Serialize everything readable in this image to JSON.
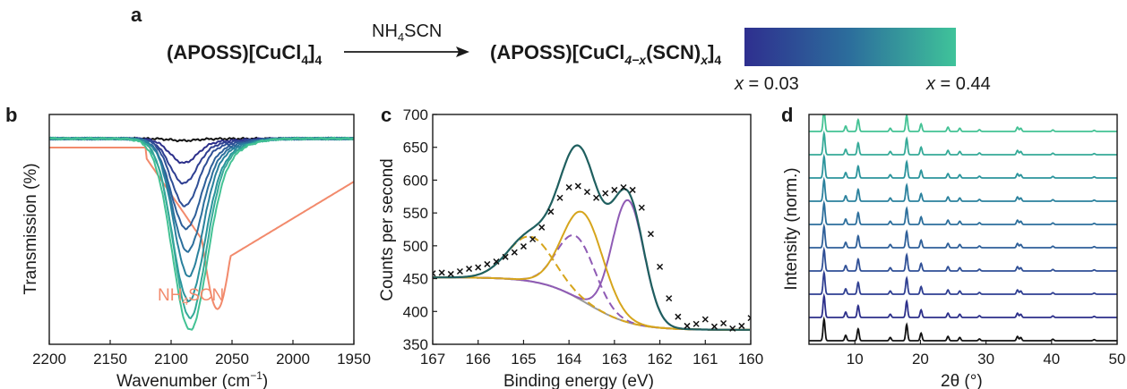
{
  "scheme": {
    "panel_letter": "a",
    "reactant": "(APOSS)[CuCl",
    "reactant_sub1": "4",
    "reactant_close": "]",
    "reactant_sub2": "4",
    "reagent": "NH",
    "reagent_sub": "4",
    "reagent_tail": "SCN",
    "product": "(APOSS)[CuCl",
    "product_sub1": "4−x",
    "product_mid": "(SCN)",
    "product_sub_x": "x",
    "product_close": "]",
    "product_sub2": "4",
    "colorbar": {
      "colors": [
        "#2e2f8f",
        "#2c6e9c",
        "#3fc39a"
      ]
    },
    "x_min_label": "x",
    "x_min_value": " = 0.03",
    "x_max_label": "x",
    "x_max_value": " = 0.44"
  },
  "chart_data": [
    {
      "panel": "b",
      "type": "line",
      "xlabel": "Wavenumber (cm",
      "xlabel_sup": "−1",
      "xlabel_end": ")",
      "ylabel": "Transmission (%)",
      "xlim": [
        2200,
        1950
      ],
      "x_ticks": [
        2200,
        2150,
        2100,
        2050,
        2000,
        1950
      ],
      "annotation": {
        "text": "NH",
        "sub": "4",
        "tail": "SCN",
        "color": "#f28a6c"
      },
      "series": [
        {
          "color": "#f28a6c",
          "peak": 2062,
          "depth": 0.86,
          "width": 12
        },
        {
          "color": "#111111",
          "peak": 2090,
          "depth": 0.01,
          "width": 10
        },
        {
          "color": "#2c2f8a",
          "peak": 2090,
          "depth": 0.12,
          "width": 11
        },
        {
          "color": "#2f3f92",
          "peak": 2090,
          "depth": 0.22,
          "width": 11
        },
        {
          "color": "#2f4f96",
          "peak": 2089,
          "depth": 0.33,
          "width": 11
        },
        {
          "color": "#2e5f99",
          "peak": 2088,
          "depth": 0.44,
          "width": 12
        },
        {
          "color": "#2c6f9c",
          "peak": 2087,
          "depth": 0.55,
          "width": 12
        },
        {
          "color": "#2a819d",
          "peak": 2086,
          "depth": 0.67,
          "width": 12
        },
        {
          "color": "#2b949c",
          "peak": 2086,
          "depth": 0.79,
          "width": 13
        },
        {
          "color": "#35aa98",
          "peak": 2085,
          "depth": 0.87,
          "width": 13
        },
        {
          "color": "#43c294",
          "peak": 2085,
          "depth": 0.93,
          "width": 14
        }
      ]
    },
    {
      "panel": "c",
      "type": "line",
      "xlabel": "Binding energy (eV)",
      "ylabel": "Counts per second",
      "xlim": [
        167,
        160
      ],
      "ylim": [
        350,
        700
      ],
      "x_ticks": [
        167,
        166,
        165,
        164,
        163,
        162,
        161,
        160
      ],
      "y_ticks": [
        350,
        400,
        450,
        500,
        550,
        600,
        650,
        700
      ],
      "measured_x": [
        167.0,
        166.8,
        166.6,
        166.4,
        166.2,
        166.0,
        165.8,
        165.6,
        165.4,
        165.2,
        165.0,
        164.8,
        164.6,
        164.4,
        164.2,
        164.0,
        163.8,
        163.6,
        163.4,
        163.2,
        163.0,
        162.8,
        162.6,
        162.4,
        162.2,
        162.0,
        161.8,
        161.6,
        161.4,
        161.2,
        161.0,
        160.8,
        160.6,
        160.4,
        160.2,
        160.0
      ],
      "measured_y": [
        458,
        459,
        457,
        461,
        465,
        467,
        472,
        476,
        483,
        490,
        499,
        510,
        528,
        552,
        573,
        589,
        591,
        582,
        573,
        580,
        585,
        589,
        585,
        558,
        518,
        468,
        420,
        392,
        378,
        381,
        388,
        377,
        382,
        374,
        378,
        390
      ],
      "fit_colors": {
        "envelope": "#1f5f5f",
        "baseline": "#9a9a9a",
        "gold": "#d6a51c",
        "purple": "#8f5bb5"
      }
    },
    {
      "panel": "d",
      "type": "line",
      "xlabel": "2θ (°)",
      "ylabel": "Intensity (norm.)",
      "xlim": [
        3,
        50
      ],
      "x_ticks": [
        10,
        20,
        30,
        40,
        50
      ],
      "peaks_2theta": [
        5.3,
        8.6,
        10.5,
        15.4,
        17.9,
        20.1,
        24.2,
        26.0,
        29.0,
        34.8,
        35.3,
        40.2,
        46.5
      ],
      "series_colors": [
        "#111111",
        "#2c2f8a",
        "#2f3f92",
        "#2f4f96",
        "#2e5f99",
        "#2c6f9c",
        "#2a819d",
        "#2b949c",
        "#35aa98",
        "#43c294"
      ]
    }
  ]
}
